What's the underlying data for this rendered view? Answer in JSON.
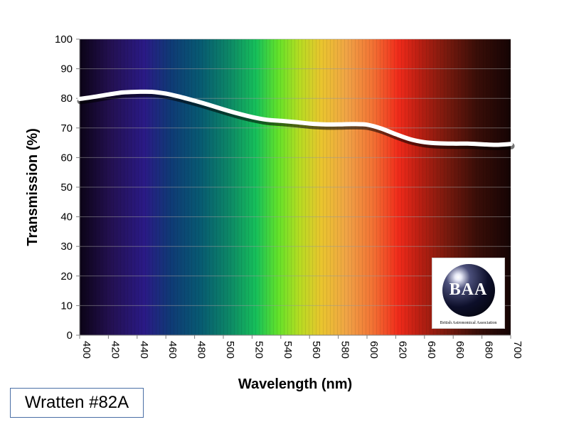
{
  "chart_data": {
    "type": "line",
    "xlabel": "Wavelength (nm)",
    "ylabel": "Transmission (%)",
    "xlim": [
      400,
      700
    ],
    "ylim": [
      0,
      100
    ],
    "x_ticks": [
      400,
      420,
      440,
      460,
      480,
      500,
      520,
      540,
      560,
      580,
      600,
      620,
      640,
      660,
      680,
      700
    ],
    "y_ticks": [
      0,
      10,
      20,
      30,
      40,
      50,
      60,
      70,
      80,
      90,
      100
    ],
    "grid": "horizontal",
    "background": "visible spectrum gradient",
    "series": [
      {
        "color": "#ffffff",
        "x": [
          400,
          410,
          420,
          430,
          440,
          450,
          460,
          470,
          480,
          490,
          500,
          510,
          520,
          530,
          540,
          550,
          560,
          570,
          580,
          590,
          600,
          610,
          620,
          630,
          640,
          650,
          660,
          670,
          680,
          690,
          700
        ],
        "y": [
          79.8,
          80.5,
          81.3,
          82.0,
          82.2,
          82.2,
          81.6,
          80.5,
          79.2,
          77.8,
          76.3,
          74.9,
          73.7,
          72.8,
          72.4,
          72.0,
          71.5,
          71.2,
          71.2,
          71.3,
          71.1,
          69.8,
          67.9,
          66.2,
          65.2,
          64.8,
          64.7,
          64.7,
          64.5,
          64.3,
          64.6
        ]
      }
    ]
  },
  "filter_label": "Wratten #82A",
  "logo": {
    "text": "BAA",
    "subtext": "British Astronomical Association"
  }
}
